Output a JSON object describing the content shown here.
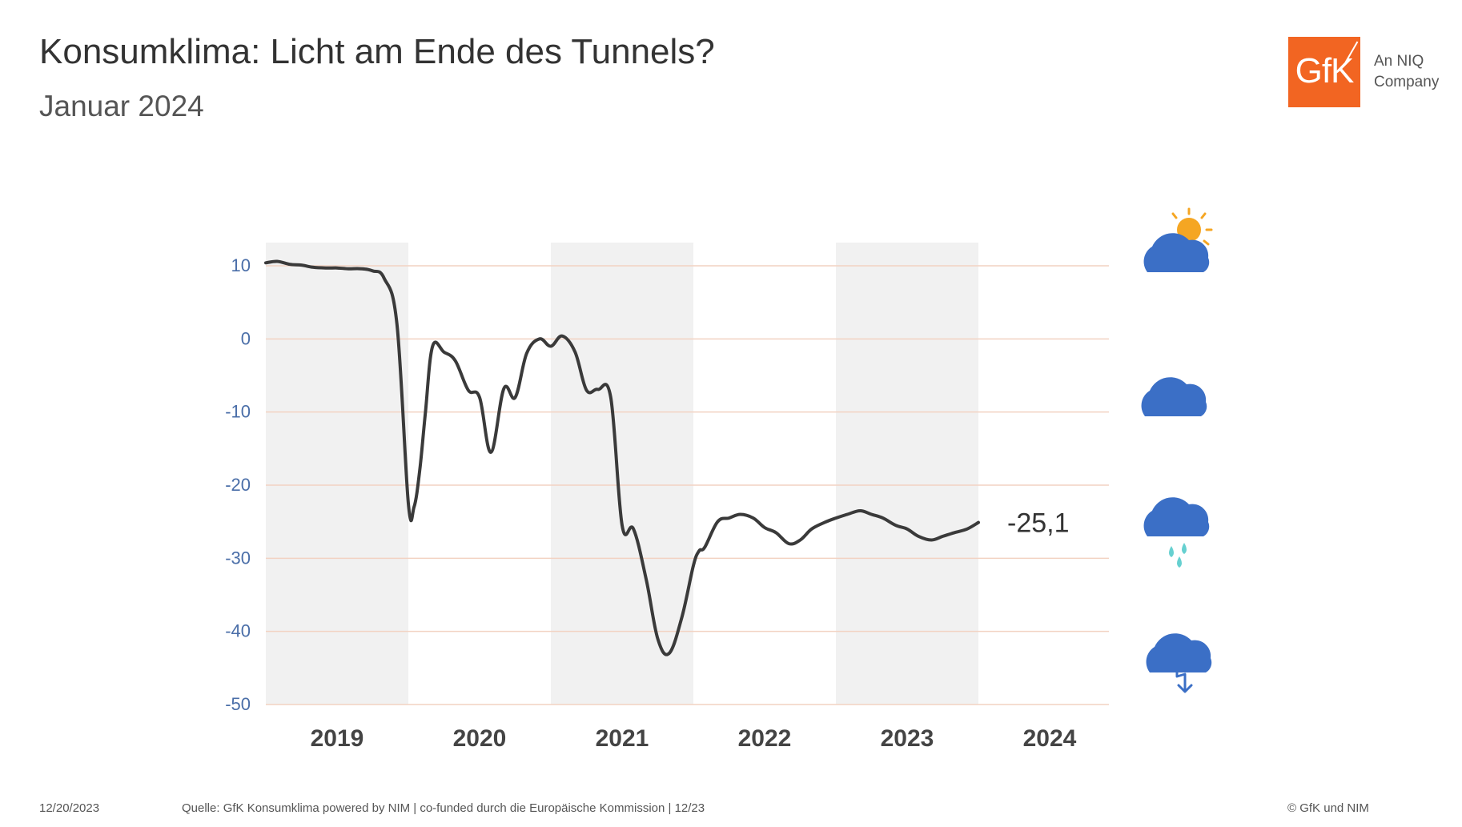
{
  "header": {
    "title": "Konsumklima: Licht am Ende des Tunnels?",
    "subtitle": "Januar 2024"
  },
  "logo": {
    "brand": "GfK",
    "company_text": "An NIQ Company",
    "brand_color": "#f26522"
  },
  "footer": {
    "date": "12/20/2023",
    "source": "Quelle: GfK Konsumklima powered by NIM | co-funded durch die Europäische Kommission | 12/23",
    "copyright": "© GfK und NIM"
  },
  "weather_icons": [
    "sun-cloud-icon",
    "cloud-icon",
    "rain-cloud-icon",
    "thunderstorm-cloud-icon"
  ],
  "colors": {
    "line": "#3a3a3a",
    "tick": "#4a6ea8",
    "grid": "#f2d2c2",
    "band": "#f1f1f1",
    "cloud": "#3b6fc6",
    "sun": "#f5a623",
    "rain": "#66d0d0"
  },
  "chart_data": {
    "type": "line",
    "title": "",
    "xlabel": "",
    "ylabel": "",
    "ylim": [
      -50,
      10
    ],
    "yticks": [
      10,
      0,
      -10,
      -20,
      -30,
      -40,
      -50
    ],
    "ytick_labels": [
      "10",
      "0",
      "-10",
      "-20",
      "-30",
      "-40",
      "-50"
    ],
    "xlim": [
      2019.0,
      2025.0
    ],
    "year_labels": [
      "2019",
      "2020",
      "2021",
      "2022",
      "2023",
      "2024"
    ],
    "shaded_years": [
      "2019",
      "2021",
      "2023"
    ],
    "grid": true,
    "last_value_label": "-25,1",
    "series": [
      {
        "x": [
          2019.0,
          2019.08,
          2019.17,
          2019.25,
          2019.33,
          2019.42,
          2019.5,
          2019.58,
          2019.67,
          2019.75,
          2019.83,
          2019.92,
          2020.0,
          2020.04,
          2020.08,
          2020.12,
          2020.17,
          2020.25,
          2020.33,
          2020.42,
          2020.5,
          2020.58,
          2020.67,
          2020.75,
          2020.83,
          2020.92,
          2021.0,
          2021.08,
          2021.17,
          2021.25,
          2021.33,
          2021.42,
          2021.5,
          2021.58,
          2021.67,
          2021.75,
          2021.83,
          2021.92,
          2022.0,
          2022.04,
          2022.08,
          2022.17,
          2022.25,
          2022.33,
          2022.42,
          2022.5,
          2022.58,
          2022.67,
          2022.75,
          2022.83,
          2022.92,
          2023.0,
          2023.08,
          2023.17,
          2023.25,
          2023.33,
          2023.42,
          2023.5,
          2023.58,
          2023.67,
          2023.75,
          2023.83,
          2023.92,
          2024.0
        ],
        "y": [
          10.4,
          10.6,
          10.2,
          10.1,
          9.8,
          9.7,
          9.7,
          9.6,
          9.6,
          9.3,
          8.3,
          2.0,
          -22.5,
          -23.0,
          -18.0,
          -10.0,
          -1.0,
          -1.8,
          -3.0,
          -7.0,
          -8.0,
          -15.5,
          -6.8,
          -8.0,
          -2.0,
          0.0,
          -1.0,
          0.4,
          -1.8,
          -7.0,
          -6.9,
          -8.0,
          -25.5,
          -26.0,
          -33.0,
          -41.0,
          -43.0,
          -38.0,
          -31.0,
          -29.0,
          -28.5,
          -25.0,
          -24.5,
          -24.0,
          -24.5,
          -25.8,
          -26.5,
          -28.0,
          -27.5,
          -26.0,
          -25.1,
          -24.5,
          -24.0,
          -23.5,
          -24.0,
          -24.5,
          -25.5,
          -26.0,
          -27.0,
          -27.5,
          -27.0,
          -26.5,
          -26.0,
          -25.1
        ]
      }
    ]
  }
}
